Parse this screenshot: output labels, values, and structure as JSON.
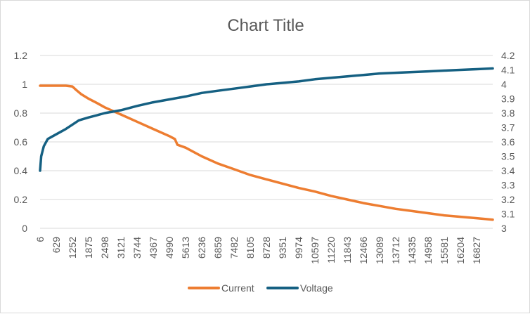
{
  "chart_data": {
    "type": "line",
    "title": "Chart Title",
    "legend_position": "bottom",
    "x_tick_labels": [
      "6",
      "629",
      "1252",
      "1875",
      "2498",
      "3121",
      "3744",
      "4367",
      "4990",
      "5613",
      "6236",
      "6859",
      "7482",
      "8105",
      "8728",
      "9351",
      "9974",
      "10597",
      "11220",
      "11843",
      "12466",
      "13089",
      "13712",
      "14335",
      "14958",
      "15581",
      "16204",
      "16827"
    ],
    "x_range": [
      6,
      17450
    ],
    "y_left": {
      "ticks": [
        "0",
        "0.2",
        "0.4",
        "0.6",
        "0.8",
        "1",
        "1.2"
      ],
      "range": [
        0,
        1.2
      ]
    },
    "y_right": {
      "ticks": [
        "3",
        "3.1",
        "3.2",
        "3.3",
        "3.4",
        "3.5",
        "3.6",
        "3.7",
        "3.8",
        "3.9",
        "4",
        "4.1",
        "4.2"
      ],
      "range": [
        3,
        4.2
      ]
    },
    "grid": "horizontal",
    "series": [
      {
        "name": "Current",
        "axis": "left",
        "color": "#ED7D31",
        "x": [
          6,
          300,
          700,
          1000,
          1252,
          1400,
          1600,
          1875,
          2200,
          2498,
          3121,
          3744,
          4367,
          4990,
          5200,
          5300,
          5613,
          6236,
          6859,
          7482,
          8105,
          8728,
          9351,
          9974,
          10597,
          11220,
          11843,
          12466,
          13089,
          13712,
          14335,
          14958,
          15581,
          16204,
          16827,
          17450
        ],
        "y": [
          0.99,
          0.99,
          0.99,
          0.99,
          0.985,
          0.96,
          0.93,
          0.9,
          0.87,
          0.84,
          0.79,
          0.74,
          0.69,
          0.64,
          0.62,
          0.58,
          0.56,
          0.5,
          0.45,
          0.41,
          0.37,
          0.34,
          0.31,
          0.28,
          0.255,
          0.225,
          0.2,
          0.175,
          0.155,
          0.135,
          0.12,
          0.105,
          0.09,
          0.08,
          0.07,
          0.06
        ]
      },
      {
        "name": "Voltage",
        "axis": "right",
        "color": "#156082",
        "x": [
          6,
          50,
          150,
          300,
          500,
          800,
          1000,
          1252,
          1500,
          1875,
          2200,
          2498,
          3121,
          3744,
          4367,
          4990,
          5613,
          6236,
          6859,
          7482,
          8105,
          8728,
          9351,
          9974,
          10597,
          11220,
          11843,
          12466,
          13089,
          13712,
          14335,
          14958,
          15581,
          16204,
          16827,
          17450
        ],
        "y": [
          3.4,
          3.5,
          3.57,
          3.62,
          3.64,
          3.67,
          3.69,
          3.72,
          3.75,
          3.77,
          3.785,
          3.8,
          3.82,
          3.85,
          3.875,
          3.895,
          3.915,
          3.94,
          3.955,
          3.97,
          3.985,
          4.0,
          4.01,
          4.02,
          4.035,
          4.045,
          4.055,
          4.065,
          4.075,
          4.08,
          4.085,
          4.09,
          4.095,
          4.1,
          4.105,
          4.11
        ]
      }
    ]
  }
}
